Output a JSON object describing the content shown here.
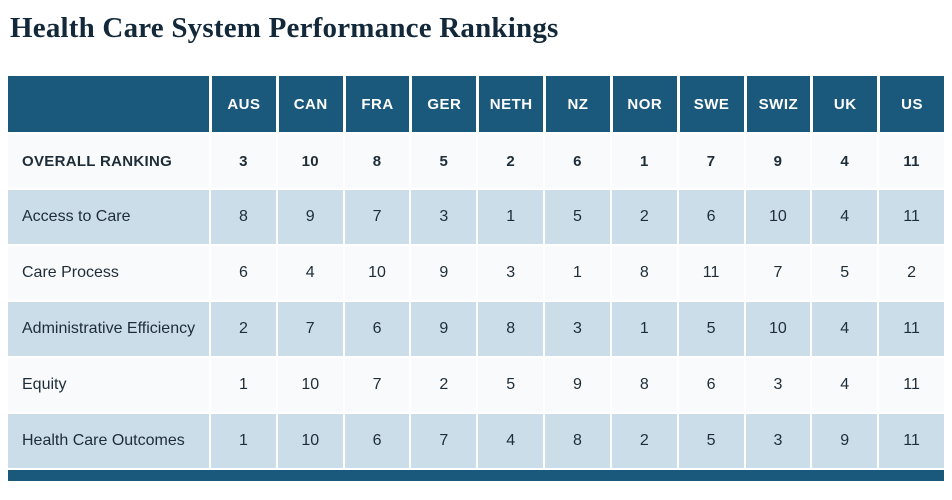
{
  "page": {
    "title": "Health Care System Performance Rankings"
  },
  "chart_data": {
    "type": "table",
    "title": "Health Care System Performance Rankings",
    "columns": [
      "AUS",
      "CAN",
      "FRA",
      "GER",
      "NETH",
      "NZ",
      "NOR",
      "SWE",
      "SWIZ",
      "UK",
      "US"
    ],
    "rows": [
      {
        "label": "OVERALL RANKING",
        "emphasis": true,
        "values": [
          3,
          10,
          8,
          5,
          2,
          6,
          1,
          7,
          9,
          4,
          11
        ]
      },
      {
        "label": "Access to Care",
        "emphasis": false,
        "values": [
          8,
          9,
          7,
          3,
          1,
          5,
          2,
          6,
          10,
          4,
          11
        ]
      },
      {
        "label": "Care Process",
        "emphasis": false,
        "values": [
          6,
          4,
          10,
          9,
          3,
          1,
          8,
          11,
          7,
          5,
          2
        ]
      },
      {
        "label": "Administrative Efficiency",
        "emphasis": false,
        "values": [
          2,
          7,
          6,
          9,
          8,
          3,
          1,
          5,
          10,
          4,
          11
        ]
      },
      {
        "label": "Equity",
        "emphasis": false,
        "values": [
          1,
          10,
          7,
          2,
          5,
          9,
          8,
          6,
          3,
          4,
          11
        ]
      },
      {
        "label": "Health Care Outcomes",
        "emphasis": false,
        "values": [
          1,
          10,
          6,
          7,
          4,
          8,
          2,
          5,
          3,
          9,
          11
        ]
      }
    ]
  },
  "colors": {
    "header_bg": "#1A587C",
    "row_light_bg": "#F8FAFB",
    "row_shaded_bg": "#CBDDE8",
    "header_text": "#FFFFFF",
    "body_text": "#1E2D38",
    "title_text": "#13293A",
    "footer_bar": "#1A587C"
  }
}
